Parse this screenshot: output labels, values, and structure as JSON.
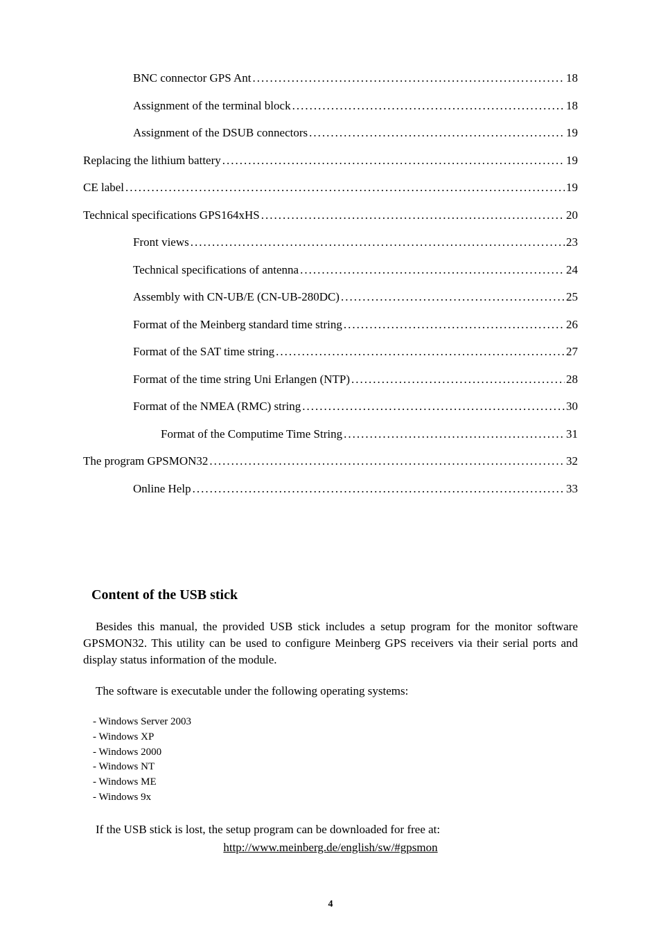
{
  "toc": [
    {
      "label": "BNC connector GPS Ant",
      "page": "18",
      "indent": 1
    },
    {
      "label": "Assignment of the terminal block",
      "page": "18",
      "indent": 1
    },
    {
      "label": "Assignment of the DSUB connectors",
      "page": "19",
      "indent": 1
    },
    {
      "label": "Replacing the lithium battery",
      "page": "19",
      "indent": 0
    },
    {
      "label": "CE label",
      "page": "19",
      "indent": 0
    },
    {
      "label": "Technical specifications GPS164xHS",
      "page": "20",
      "indent": 0
    },
    {
      "label": "Front views",
      "page": "23",
      "indent": 1
    },
    {
      "label": "Technical specifications of antenna",
      "page": "24",
      "indent": 1
    },
    {
      "label": "Assembly with CN-UB/E (CN-UB-280DC)",
      "page": "25",
      "indent": 1
    },
    {
      "label": "Format of the Meinberg standard time string",
      "page": "26",
      "indent": 1
    },
    {
      "label": "Format of the SAT time string",
      "page": "27",
      "indent": 1
    },
    {
      "label": "Format of the time string Uni Erlangen (NTP)",
      "page": "28",
      "indent": 1
    },
    {
      "label": "Format of the NMEA (RMC) string",
      "page": "30",
      "indent": 1
    },
    {
      "label": "Format of the Computime Time String",
      "page": "31",
      "indent": 2
    },
    {
      "label": "The program GPSMON32",
      "page": "32",
      "indent": 0
    },
    {
      "label": "Online Help",
      "page": "33",
      "indent": 1
    }
  ],
  "section": {
    "title": "Content of the USB stick",
    "para1": "Besides this manual, the provided USB stick includes a setup program for the monitor software GPSMON32. This utility can be used to configure Meinberg GPS receivers  via their serial ports and display status information of the module.",
    "para2": "The software is executable under the following operating systems:",
    "os": [
      "- Windows Server 2003",
      "- Windows XP",
      "- Windows 2000",
      "- Windows NT",
      "- Windows ME",
      "- Windows 9x"
    ],
    "download_intro": "If the USB stick is lost, the setup program can be downloaded for free at:",
    "download_url": "http://www.meinberg.de/english/sw/#gpsmon"
  },
  "page_number": "4"
}
